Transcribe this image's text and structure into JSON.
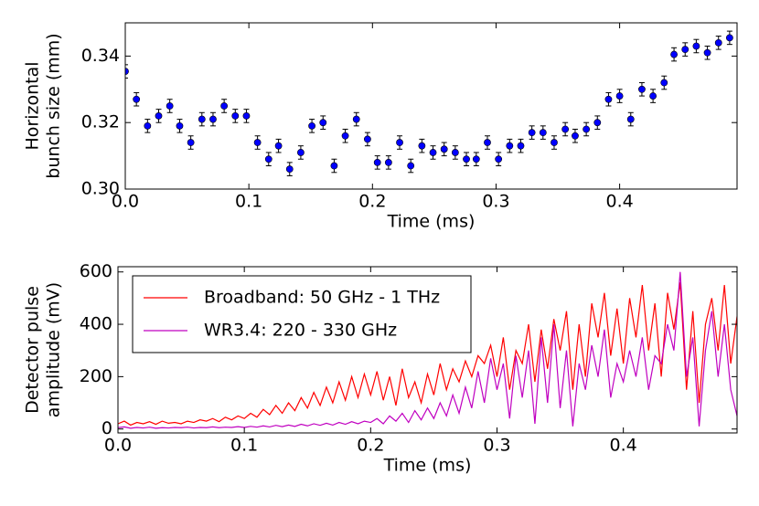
{
  "chart_data": [
    {
      "type": "scatter",
      "xlabel": "Time (ms)",
      "ylabel": [
        "Horizontal",
        "bunch size (mm)"
      ],
      "x": [
        0,
        0.009,
        0.018,
        0.027,
        0.036,
        0.044,
        0.053,
        0.062,
        0.071,
        0.08,
        0.089,
        0.098,
        0.107,
        0.116,
        0.124,
        0.133,
        0.142,
        0.151,
        0.16,
        0.169,
        0.178,
        0.187,
        0.196,
        0.204,
        0.213,
        0.222,
        0.231,
        0.24,
        0.249,
        0.258,
        0.267,
        0.276,
        0.284,
        0.293,
        0.302,
        0.311,
        0.32,
        0.329,
        0.338,
        0.347,
        0.356,
        0.364,
        0.373,
        0.382,
        0.391,
        0.4,
        0.409,
        0.418,
        0.427,
        0.436,
        0.444,
        0.453,
        0.462,
        0.471,
        0.48,
        0.489
      ],
      "values": [
        0.3354,
        0.327,
        0.319,
        0.322,
        0.325,
        0.319,
        0.314,
        0.321,
        0.321,
        0.325,
        0.322,
        0.322,
        0.314,
        0.309,
        0.313,
        0.306,
        0.311,
        0.319,
        0.32,
        0.307,
        0.316,
        0.321,
        0.315,
        0.308,
        0.308,
        0.314,
        0.307,
        0.313,
        0.311,
        0.312,
        0.311,
        0.309,
        0.309,
        0.314,
        0.309,
        0.313,
        0.313,
        0.317,
        0.317,
        0.314,
        0.318,
        0.316,
        0.318,
        0.32,
        0.327,
        0.328,
        0.321,
        0.33,
        0.328,
        0.332,
        0.3405,
        0.342,
        0.343,
        0.341,
        0.344,
        0.3455
      ],
      "errors": [
        0.002,
        0.002,
        0.002,
        0.002,
        0.002,
        0.002,
        0.002,
        0.002,
        0.002,
        0.002,
        0.002,
        0.002,
        0.002,
        0.002,
        0.002,
        0.002,
        0.002,
        0.002,
        0.002,
        0.002,
        0.002,
        0.002,
        0.002,
        0.002,
        0.002,
        0.002,
        0.002,
        0.002,
        0.002,
        0.002,
        0.002,
        0.002,
        0.002,
        0.002,
        0.002,
        0.002,
        0.002,
        0.002,
        0.002,
        0.002,
        0.002,
        0.002,
        0.002,
        0.002,
        0.002,
        0.002,
        0.002,
        0.002,
        0.002,
        0.002,
        0.002,
        0.002,
        0.002,
        0.002,
        0.002,
        0.002
      ],
      "color": "#0000ff",
      "xlim": [
        0,
        0.495
      ],
      "xticks": [
        {
          "value": 0,
          "label": "0.0"
        },
        0.1,
        0.2,
        0.3,
        0.4
      ],
      "ylim": [
        0.3,
        0.35
      ],
      "yticks": [
        {
          "value": 0.3,
          "label": "0.30"
        },
        0.32,
        0.34
      ]
    },
    {
      "type": "line",
      "xlabel": "Time (ms)",
      "ylabel": [
        "Detector pulse",
        "amplitude (mV)"
      ],
      "legend": "upper left",
      "x": [
        0,
        0.005,
        0.01,
        0.015,
        0.02,
        0.025,
        0.03,
        0.035,
        0.04,
        0.045,
        0.05,
        0.055,
        0.06,
        0.065,
        0.07,
        0.075,
        0.08,
        0.085,
        0.09,
        0.095,
        0.1,
        0.105,
        0.11,
        0.115,
        0.12,
        0.125,
        0.13,
        0.135,
        0.14,
        0.145,
        0.15,
        0.155,
        0.16,
        0.165,
        0.17,
        0.175,
        0.18,
        0.185,
        0.19,
        0.195,
        0.2,
        0.205,
        0.21,
        0.215,
        0.22,
        0.225,
        0.23,
        0.235,
        0.24,
        0.245,
        0.25,
        0.255,
        0.26,
        0.265,
        0.27,
        0.275,
        0.28,
        0.285,
        0.29,
        0.295,
        0.3,
        0.305,
        0.31,
        0.315,
        0.32,
        0.325,
        0.33,
        0.335,
        0.34,
        0.345,
        0.35,
        0.355,
        0.36,
        0.365,
        0.37,
        0.375,
        0.38,
        0.385,
        0.39,
        0.395,
        0.4,
        0.405,
        0.41,
        0.415,
        0.42,
        0.425,
        0.43,
        0.435,
        0.44,
        0.445,
        0.45,
        0.455,
        0.46,
        0.465,
        0.47,
        0.475,
        0.48,
        0.485,
        0.49
      ],
      "series": [
        {
          "name": "Broadband: 50 GHz - 1 THz",
          "color": "#ff0000",
          "values": [
            20,
            30,
            15,
            25,
            20,
            28,
            18,
            30,
            22,
            25,
            20,
            30,
            25,
            35,
            30,
            40,
            28,
            45,
            35,
            50,
            40,
            60,
            45,
            75,
            55,
            90,
            60,
            100,
            70,
            120,
            80,
            140,
            90,
            160,
            100,
            180,
            110,
            200,
            120,
            210,
            130,
            220,
            110,
            200,
            90,
            230,
            120,
            180,
            100,
            210,
            130,
            250,
            150,
            230,
            180,
            260,
            200,
            280,
            250,
            320,
            200,
            350,
            150,
            300,
            250,
            400,
            180,
            380,
            230,
            420,
            300,
            450,
            150,
            400,
            200,
            480,
            350,
            520,
            280,
            460,
            250,
            500,
            350,
            550,
            300,
            480,
            200,
            520,
            380,
            560,
            150,
            450,
            100,
            400,
            500,
            300,
            550,
            250,
            430
          ]
        },
        {
          "name": "WR3.4: 220 - 330 GHz",
          "color": "#c000c0",
          "values": [
            5,
            8,
            3,
            6,
            4,
            7,
            3,
            5,
            4,
            6,
            5,
            7,
            4,
            6,
            5,
            8,
            5,
            7,
            6,
            9,
            6,
            10,
            7,
            12,
            8,
            14,
            9,
            15,
            10,
            18,
            12,
            20,
            14,
            22,
            15,
            25,
            18,
            28,
            20,
            30,
            25,
            40,
            20,
            50,
            30,
            60,
            25,
            70,
            35,
            80,
            40,
            100,
            50,
            130,
            60,
            160,
            80,
            220,
            100,
            270,
            150,
            250,
            40,
            280,
            120,
            300,
            20,
            350,
            100,
            400,
            80,
            300,
            10,
            250,
            150,
            320,
            200,
            380,
            120,
            250,
            180,
            300,
            200,
            350,
            150,
            280,
            250,
            400,
            300,
            600,
            200,
            350,
            10,
            300,
            450,
            200,
            400,
            150,
            50
          ]
        }
      ],
      "xlim": [
        0,
        0.49
      ],
      "xticks": [
        {
          "value": 0,
          "label": "0.0"
        },
        0.1,
        0.2,
        0.3,
        0.4
      ],
      "ylim": [
        -15,
        620
      ],
      "yticks": [
        0,
        200,
        400,
        600
      ]
    }
  ]
}
